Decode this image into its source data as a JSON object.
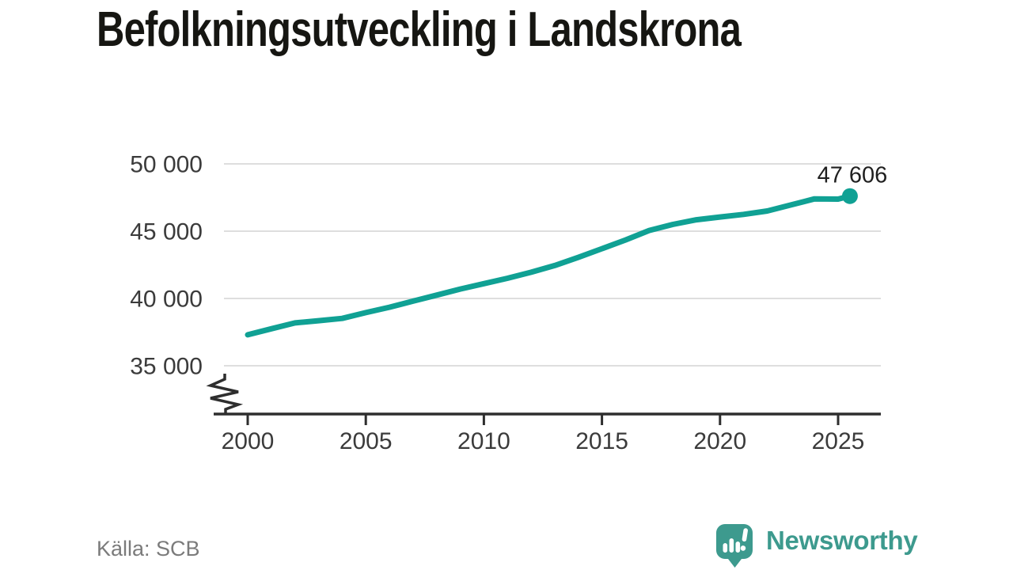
{
  "title": "Befolkningsutveckling i Landskrona",
  "source": "Källa: SCB",
  "branding": {
    "wordmark": "Newsworthy",
    "icon": "speech-bubble-bar-chart-icon"
  },
  "colors": {
    "line": "#10a194",
    "dot": "#10a194",
    "grid": "#dedede",
    "axis": "#2e2e2e",
    "tick_text": "#3b3b3b",
    "annotation_text": "#1f1f1f",
    "source_text": "#7b7b7b",
    "brand_teal": "#3d9a8e",
    "title_text": "#161612"
  },
  "chart_data": {
    "type": "line",
    "title": "Befolkningsutveckling i Landskrona",
    "xlabel": "",
    "ylabel": "",
    "grid": true,
    "axis_break": true,
    "xlim": [
      1998.6,
      2026.8
    ],
    "ylim": [
      33500,
      50000
    ],
    "x_ticks": [
      2000,
      2005,
      2010,
      2015,
      2020,
      2025
    ],
    "x_tick_labels": [
      "2000",
      "2005",
      "2010",
      "2015",
      "2020",
      "2025"
    ],
    "y_ticks": [
      50000,
      45000,
      40000,
      35000
    ],
    "y_tick_labels": [
      "50 000",
      "45 000",
      "40 000",
      "35 000"
    ],
    "x": [
      2000,
      2001,
      2002,
      2003,
      2004,
      2005,
      2006,
      2007,
      2008,
      2009,
      2010,
      2011,
      2012,
      2013,
      2014,
      2015,
      2016,
      2017,
      2018,
      2019,
      2020,
      2021,
      2022,
      2023,
      2024,
      2025,
      2025.5
    ],
    "values": [
      37300,
      37750,
      38180,
      38350,
      38520,
      38950,
      39350,
      39800,
      40250,
      40700,
      41100,
      41500,
      41950,
      42450,
      43050,
      43700,
      44350,
      45050,
      45500,
      45850,
      46050,
      46250,
      46500,
      46950,
      47400,
      47380,
      47606
    ],
    "end_value": 47606,
    "end_label": "47 606"
  }
}
